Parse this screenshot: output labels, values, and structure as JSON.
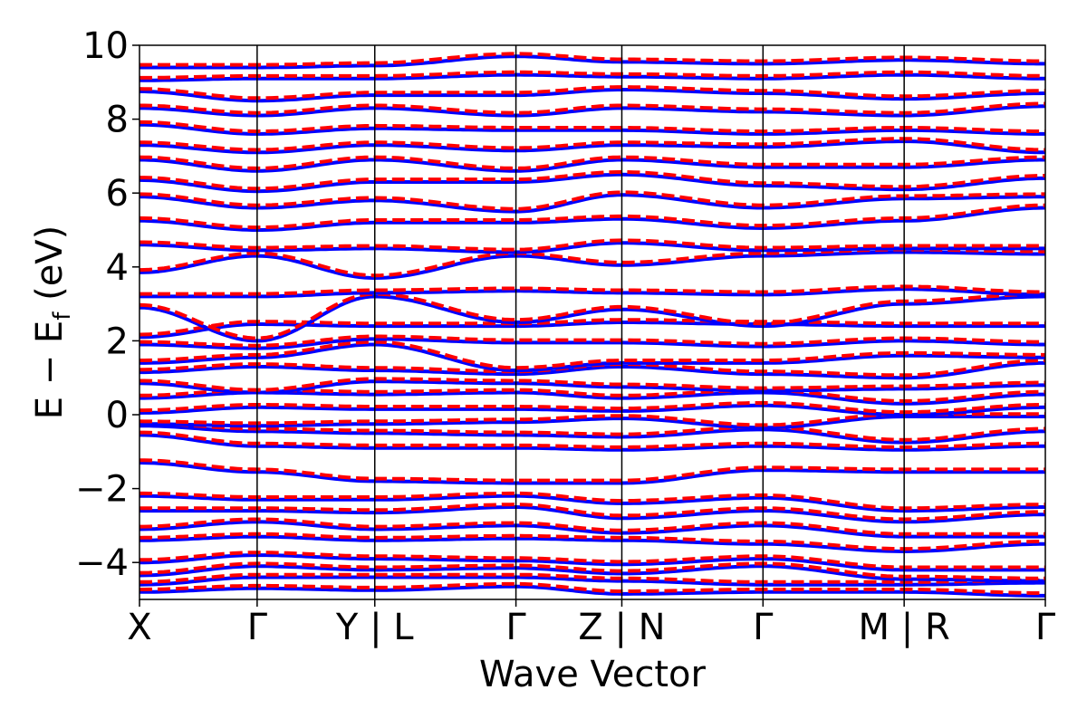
{
  "chart_data": {
    "type": "line",
    "title": "",
    "xlabel": "Wave Vector",
    "ylabel_main": "E − E",
    "ylabel_sub": "f",
    "ylabel_unit": " (eV)",
    "ylim": [
      -5,
      10
    ],
    "yticks": [
      {
        "value": 10,
        "label": "10"
      },
      {
        "value": 8,
        "label": "8"
      },
      {
        "value": 6,
        "label": "6"
      },
      {
        "value": 4,
        "label": "4"
      },
      {
        "value": 2,
        "label": "2"
      },
      {
        "value": 0,
        "label": "0"
      },
      {
        "value": -2,
        "label": "−2"
      },
      {
        "value": -4,
        "label": "−4"
      }
    ],
    "grid": false,
    "legend": "none",
    "high_symmetry_ticks": [
      {
        "label": "X",
        "k": 0.0
      },
      {
        "label": "Γ",
        "k": 1.0
      },
      {
        "label": "Y | L",
        "k": 2.0
      },
      {
        "label": "Γ",
        "k": 3.2
      },
      {
        "label": "Z | N",
        "k": 4.1
      },
      {
        "label": "Γ",
        "k": 5.3
      },
      {
        "label": "M | R",
        "k": 6.5
      },
      {
        "label": "Γ",
        "k": 7.7
      }
    ],
    "k_range": [
      0,
      7.7
    ],
    "colors": {
      "series_1": "#0000ff",
      "series_2": "#ff0000",
      "vlines": "#000000",
      "frame": "#000000"
    },
    "series": [
      {
        "style": "solid",
        "color": "#0000ff",
        "line_width": "thick"
      },
      {
        "style": "dashed",
        "color": "#ff0000",
        "line_width": "thick"
      }
    ],
    "bands": [
      [
        -4.8,
        -4.7,
        -4.75,
        -4.65,
        -4.85,
        -4.8,
        -4.8,
        -4.9
      ],
      [
        -4.6,
        -4.4,
        -4.4,
        -4.4,
        -4.5,
        -4.6,
        -4.6,
        -4.55
      ],
      [
        -4.35,
        -4.1,
        -4.2,
        -4.15,
        -4.3,
        -4.1,
        -4.45,
        -4.5
      ],
      [
        -4.0,
        -3.8,
        -3.9,
        -3.95,
        -4.05,
        -3.9,
        -4.2,
        -4.2
      ],
      [
        -3.4,
        -3.3,
        -3.4,
        -3.35,
        -3.4,
        -3.5,
        -3.7,
        -3.5
      ],
      [
        -3.1,
        -2.9,
        -3.1,
        -3.0,
        -3.2,
        -3.0,
        -3.3,
        -3.3
      ],
      [
        -2.6,
        -2.6,
        -2.65,
        -2.5,
        -2.8,
        -2.6,
        -2.9,
        -2.7
      ],
      [
        -2.2,
        -2.3,
        -2.3,
        -2.2,
        -2.4,
        -2.25,
        -2.6,
        -2.5
      ],
      [
        -1.3,
        -1.55,
        -1.8,
        -1.85,
        -1.85,
        -1.5,
        -1.55,
        -1.55
      ],
      [
        -0.55,
        -0.85,
        -0.9,
        -0.9,
        -0.95,
        -0.85,
        -0.95,
        -0.85
      ],
      [
        -0.3,
        -0.45,
        -0.5,
        -0.55,
        -0.6,
        -0.4,
        -0.75,
        -0.45
      ],
      [
        -0.25,
        -0.3,
        -0.25,
        -0.2,
        -0.1,
        -0.35,
        -0.05,
        -0.05
      ],
      [
        0.05,
        0.2,
        0.15,
        0.15,
        0.1,
        0.25,
        0.0,
        0.2
      ],
      [
        0.45,
        0.6,
        0.55,
        0.6,
        0.45,
        0.6,
        0.3,
        0.55
      ],
      [
        0.85,
        0.6,
        0.9,
        0.85,
        0.75,
        0.65,
        0.7,
        0.8
      ],
      [
        1.15,
        1.3,
        1.2,
        1.1,
        1.3,
        1.1,
        1.0,
        1.4
      ],
      [
        1.4,
        1.55,
        1.9,
        1.2,
        1.4,
        1.4,
        1.6,
        1.55
      ],
      [
        1.9,
        1.8,
        2.05,
        1.95,
        1.95,
        1.85,
        2.0,
        1.9
      ],
      [
        2.1,
        2.45,
        2.4,
        2.4,
        2.5,
        2.45,
        2.4,
        2.4
      ],
      [
        2.9,
        2.0,
        3.2,
        2.5,
        2.85,
        2.4,
        3.0,
        3.2
      ],
      [
        3.2,
        3.2,
        3.3,
        3.35,
        3.3,
        3.25,
        3.4,
        3.25
      ],
      [
        3.85,
        4.3,
        3.7,
        4.3,
        4.05,
        4.3,
        4.4,
        4.35
      ],
      [
        4.6,
        4.45,
        4.5,
        4.4,
        4.65,
        4.45,
        4.5,
        4.5
      ],
      [
        5.25,
        5.0,
        5.2,
        5.2,
        5.3,
        5.05,
        5.25,
        5.6
      ],
      [
        5.9,
        5.6,
        5.8,
        5.5,
        5.95,
        5.6,
        5.85,
        5.9
      ],
      [
        6.35,
        6.05,
        6.3,
        6.3,
        6.5,
        6.2,
        6.1,
        6.4
      ],
      [
        6.9,
        6.6,
        6.9,
        6.6,
        6.9,
        6.7,
        6.7,
        6.9
      ],
      [
        7.3,
        7.1,
        7.3,
        7.15,
        7.3,
        7.25,
        7.4,
        7.1
      ],
      [
        7.85,
        7.6,
        7.75,
        7.7,
        7.7,
        7.6,
        7.7,
        7.6
      ],
      [
        8.3,
        8.1,
        8.3,
        8.1,
        8.3,
        8.2,
        8.1,
        8.35
      ],
      [
        8.75,
        8.5,
        8.65,
        8.65,
        8.8,
        8.7,
        8.55,
        8.7
      ],
      [
        9.05,
        9.1,
        9.1,
        9.2,
        9.15,
        9.1,
        9.2,
        9.1
      ],
      [
        9.4,
        9.4,
        9.45,
        9.7,
        9.55,
        9.5,
        9.6,
        9.5
      ]
    ]
  }
}
